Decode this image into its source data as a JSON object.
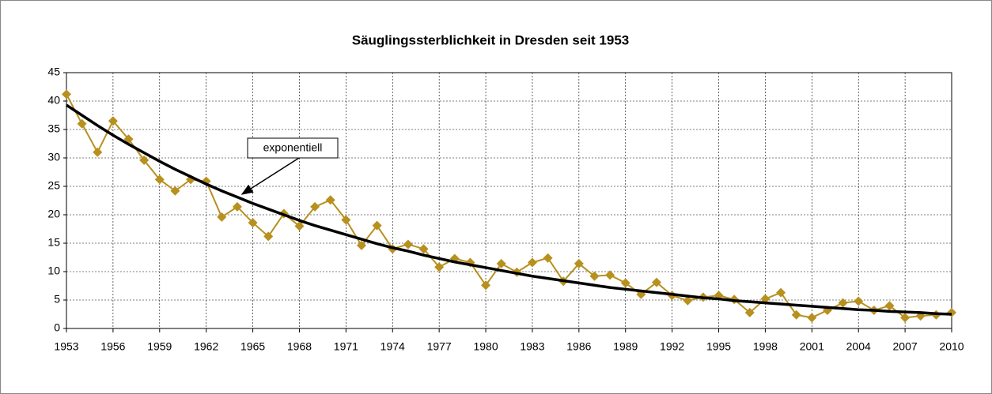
{
  "chart_data": {
    "type": "line",
    "title": "Säuglingssterblichkeit in Dresden seit 1953",
    "x": [
      1953,
      1954,
      1955,
      1956,
      1957,
      1958,
      1959,
      1960,
      1961,
      1962,
      1963,
      1964,
      1965,
      1966,
      1967,
      1968,
      1969,
      1970,
      1971,
      1972,
      1973,
      1974,
      1975,
      1976,
      1977,
      1978,
      1979,
      1980,
      1981,
      1982,
      1983,
      1984,
      1985,
      1986,
      1987,
      1988,
      1989,
      1990,
      1991,
      1992,
      1993,
      1994,
      1995,
      1996,
      1997,
      1998,
      1999,
      2000,
      2001,
      2002,
      2003,
      2004,
      2005,
      2006,
      2007,
      2008,
      2009,
      2010
    ],
    "series": [
      {
        "color": "#b8901e",
        "values": [
          41.2,
          36,
          31,
          36.5,
          33.3,
          29.6,
          26.2,
          24.2,
          26.2,
          25.9,
          19.6,
          21.4,
          18.6,
          16.2,
          20.2,
          18,
          21.4,
          22.6,
          19.1,
          14.6,
          18.1,
          14,
          14.8,
          14,
          10.8,
          12.3,
          11.6,
          7.6,
          11.4,
          9.9,
          11.6,
          12.4,
          8.3,
          11.4,
          9.2,
          9.4,
          8,
          6,
          8.1,
          5.8,
          4.9,
          5.5,
          5.8,
          5.1,
          2.8,
          5.2,
          6.3,
          2.4,
          1.9,
          3.2,
          4.5,
          4.8,
          3.2,
          4,
          1.9,
          2.2,
          2.4,
          2.8
        ]
      }
    ],
    "trendline": {
      "label": "exponentiell",
      "color": "#000000",
      "values": [
        39.3,
        37.5,
        35.7,
        34,
        32.4,
        30.9,
        29.4,
        28,
        26.7,
        25.4,
        24.2,
        23.1,
        22,
        21,
        20,
        19,
        18.1,
        17.3,
        16.5,
        15.7,
        14.9,
        14.2,
        13.6,
        12.9,
        12.3,
        11.7,
        11.2,
        10.7,
        10.2,
        9.7,
        9.2,
        8.8,
        8.4,
        8,
        7.6,
        7.2,
        6.9,
        6.6,
        6.3,
        6,
        5.7,
        5.4,
        5.2,
        4.9,
        4.7,
        4.5,
        4.3,
        4.1,
        3.9,
        3.7,
        3.5,
        3.3,
        3.2,
        3,
        2.9,
        2.8,
        2.6,
        2.5
      ]
    },
    "xlim": [
      1953,
      2010
    ],
    "xticks": [
      1953,
      1956,
      1959,
      1962,
      1965,
      1968,
      1971,
      1974,
      1977,
      1980,
      1983,
      1986,
      1989,
      1992,
      1995,
      1998,
      2001,
      2004,
      2007,
      2010
    ],
    "ylim": [
      0,
      45
    ],
    "yticks": [
      0,
      5,
      10,
      15,
      20,
      25,
      30,
      35,
      40,
      45
    ],
    "grid": true
  }
}
